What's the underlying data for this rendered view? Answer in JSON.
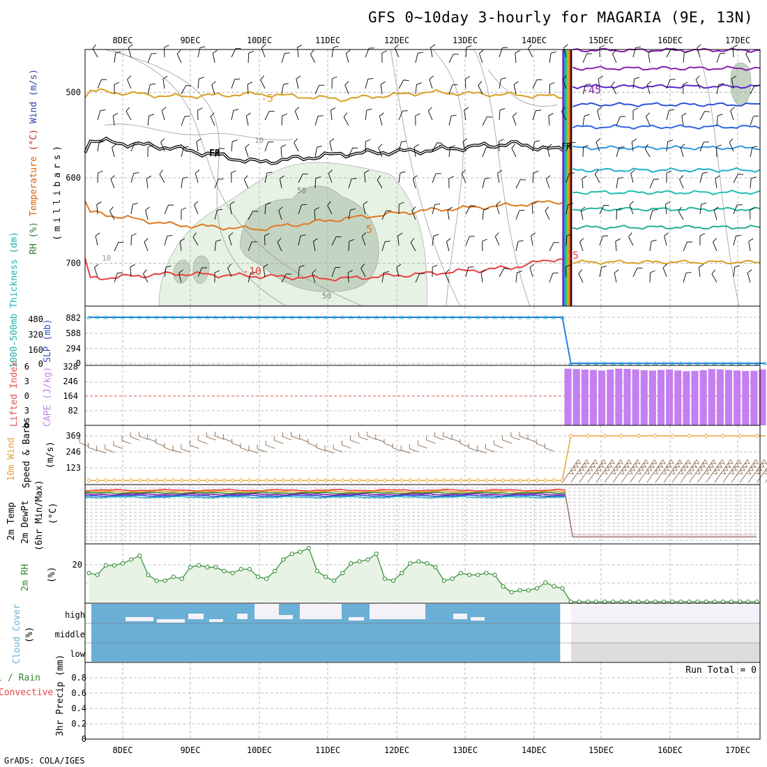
{
  "title": "GFS 0~10day 3-hourly for MAGARIA (9E, 13N)",
  "footer": "GrADS: COLA/IGES",
  "run_total": "Run Total = 0",
  "dates": [
    "8DEC",
    "9DEC",
    "10DEC",
    "11DEC",
    "12DEC",
    "13DEC",
    "14DEC",
    "15DEC",
    "16DEC",
    "17DEC"
  ],
  "chart_data": [
    {
      "panel": "upper-air",
      "type": "line",
      "ylabel_parts": [
        {
          "text": "RH (%)",
          "color": "#2e7d32"
        },
        {
          "text": "Temperature",
          "color": "#e06000"
        },
        {
          "text": "(°C)",
          "color": "#cc2222"
        },
        {
          "text": "Wind (m/s)",
          "color": "#3040b0"
        }
      ],
      "ylabel2": "(millibars)",
      "yticks": [
        "500",
        "600",
        "700"
      ],
      "contour_labels": [
        "-5",
        "FR",
        "FR",
        "5",
        "-10",
        "10",
        "50",
        "50",
        "10",
        "-45",
        "15"
      ],
      "series": [
        {
          "name": "FR",
          "x": [
            0,
            10,
            20,
            30,
            40,
            50,
            55
          ],
          "y": [
            556,
            565,
            582,
            572,
            568,
            560,
            567
          ]
        },
        {
          "name": "-5",
          "x": [
            0,
            10,
            20,
            30,
            40,
            50,
            55
          ],
          "y": [
            498,
            505,
            502,
            508,
            500,
            503,
            505
          ]
        },
        {
          "name": "5",
          "x": [
            0,
            10,
            20,
            30,
            40,
            50,
            55
          ],
          "y": [
            640,
            655,
            660,
            648,
            638,
            632,
            628
          ]
        },
        {
          "name": "10",
          "x": [
            0,
            10,
            20,
            30,
            40,
            50,
            55
          ],
          "y": [
            718,
            712,
            715,
            718,
            712,
            705,
            695
          ]
        }
      ]
    },
    {
      "panel": "thickness-slp",
      "type": "line",
      "ylabel_a": "1000-500mb Thickness (dm)",
      "ylabel_b": "SLP (mb)",
      "yticks_a": [
        "480",
        "320",
        "160",
        "0"
      ],
      "yticks_b": [
        "882",
        "588",
        "294",
        "0"
      ],
      "series": [
        {
          "name": "SLP",
          "x": [
            0,
            56,
            57,
            80
          ],
          "y": [
            882,
            882,
            0,
            0
          ]
        }
      ]
    },
    {
      "panel": "cape-li",
      "type": "bar",
      "ylabel_a": "Lifted Index",
      "ylabel_b": "CAPE (J/kg)",
      "yticks_a": [
        "6",
        "3",
        "0",
        "3",
        "6"
      ],
      "yticks_b": [
        "328",
        "246",
        "164",
        "82"
      ],
      "x": [
        56,
        57,
        58,
        59,
        60,
        61,
        62,
        63,
        64,
        65,
        66,
        67,
        68,
        69,
        70,
        71,
        72,
        73,
        74,
        75,
        76,
        77,
        78,
        79
      ],
      "values": [
        310,
        308,
        305,
        303,
        300,
        305,
        310,
        309,
        306,
        302,
        300,
        303,
        305,
        300,
        296,
        298,
        302,
        308,
        306,
        303,
        300,
        297,
        298,
        306
      ]
    },
    {
      "panel": "wind10m",
      "type": "line",
      "ylabel_a": "10m Wind",
      "ylabel_b": "Speed & Barbs",
      "ylabel_c": "(m/s)",
      "yticks": [
        "369",
        "246",
        "123"
      ],
      "series": [
        {
          "name": "Speed",
          "x": [
            0,
            56,
            57,
            80
          ],
          "y": [
            12,
            12,
            369,
            369
          ]
        }
      ]
    },
    {
      "panel": "temp2m",
      "type": "line",
      "ylabel_a": "2m Temp",
      "ylabel_b": "2m DewPt",
      "ylabel_c": "(6hr Min/Max)",
      "ylabel_d": "(°C)"
    },
    {
      "panel": "rh2m",
      "type": "area",
      "ylabel_a": "2m RH",
      "ylabel_b": "(%)",
      "yticks": [
        "20"
      ],
      "x": [
        0,
        1,
        2,
        3,
        4,
        5,
        6,
        7,
        8,
        9,
        10,
        11,
        12,
        13,
        14,
        15,
        16,
        17,
        18,
        19,
        20,
        21,
        22,
        23,
        24,
        25,
        26,
        27,
        28,
        29,
        30,
        31,
        32,
        33,
        34,
        35,
        36,
        37,
        38,
        39,
        40,
        41,
        42,
        43,
        44,
        45,
        46,
        47,
        48,
        49,
        50,
        51,
        52,
        53,
        54,
        55,
        56,
        57,
        58,
        59,
        60,
        61,
        62,
        63,
        64,
        65,
        66,
        67,
        68,
        69,
        70,
        71,
        72,
        73,
        74,
        75,
        76,
        77,
        78,
        79
      ],
      "values": [
        15,
        14,
        19,
        19,
        20,
        22,
        24,
        14,
        11,
        11,
        13,
        12,
        18,
        19,
        18,
        18,
        16,
        15,
        17,
        17,
        13,
        12,
        16,
        22,
        25,
        26,
        28,
        16,
        13,
        11,
        15,
        20,
        21,
        22,
        25,
        12,
        11,
        15,
        20,
        21,
        20,
        18,
        11,
        12,
        15,
        14,
        14,
        15,
        14,
        8,
        5,
        6,
        6,
        7,
        10,
        8,
        7,
        0,
        0,
        0,
        0,
        0,
        0,
        0,
        0,
        0,
        0,
        0,
        0,
        0,
        0,
        0,
        0,
        0,
        0,
        0,
        0,
        0,
        0,
        0
      ]
    },
    {
      "panel": "cloud",
      "type": "area",
      "ylabel_a": "Cloud Cover",
      "ylabel_b": "(%)",
      "levels": [
        "high",
        "middle",
        "low"
      ]
    },
    {
      "panel": "precip",
      "type": "bar",
      "ylabel_a": "Total / Rain",
      "ylabel_b": "Convective",
      "ylabel_c": "3hr Precip (mm)",
      "yticks": [
        "0.8",
        "0.6",
        "0.4",
        "0.2",
        "0"
      ],
      "values": []
    }
  ],
  "colors": {
    "frame": "#000000",
    "grid": "#aaaaaa",
    "slp": "#2a7be0",
    "cape": "#c47ff0",
    "wind_speed": "#e8a030",
    "rh": "#2e8b2e",
    "cloud": "#6aafd6",
    "freezing": "#000000",
    "temp_neg5": "#d8a020",
    "temp_5": "#e07820",
    "temp_10": "#e84040",
    "li_zero": "#e05050"
  }
}
